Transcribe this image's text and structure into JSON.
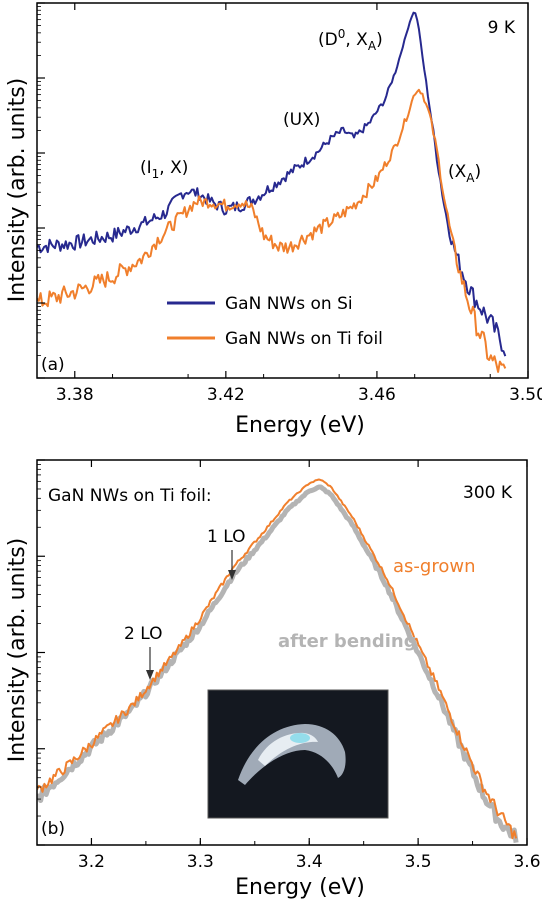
{
  "chart_data": [
    {
      "type": "line",
      "panel_label": "(a)",
      "temperature_label": "9 K",
      "xlabel": "Energy (eV)",
      "ylabel": "Intensity (arb. units)",
      "xlim": [
        3.37,
        3.5
      ],
      "ylim": [
        0,
        1
      ],
      "y_scale": "log",
      "y_tick_labels": "none",
      "x_ticks": [
        3.38,
        3.42,
        3.46,
        3.5
      ],
      "x_tick_labels": [
        "3.38",
        "3.42",
        "3.46",
        "3.50"
      ],
      "legend": {
        "placement": "bottom-center",
        "entries": [
          "GaN NWs on Si",
          "GaN NWs on Ti foil"
        ]
      },
      "annotations": [
        {
          "text": "(I",
          "sub": "1",
          "after": ", X)",
          "x": 3.41
        },
        {
          "text": "(UX)",
          "x": 3.451
        },
        {
          "text": "(D",
          "sup": "0",
          "after": ", X",
          "sub2": "A",
          "end": ")",
          "x": 3.47
        },
        {
          "text": "(X",
          "sub": "A",
          "after": ")",
          "x": 3.481
        }
      ],
      "series": [
        {
          "name": "GaN NWs on Si",
          "color": "#27298f",
          "x": [
            3.37,
            3.38,
            3.39,
            3.398,
            3.404,
            3.408,
            3.41,
            3.413,
            3.416,
            3.42,
            3.424,
            3.428,
            3.432,
            3.436,
            3.44,
            3.444,
            3.448,
            3.451,
            3.454,
            3.458,
            3.462,
            3.465,
            3.467,
            3.469,
            3.47,
            3.471,
            3.472,
            3.474,
            3.476,
            3.478,
            3.48,
            3.482,
            3.484,
            3.486,
            3.49,
            3.494
          ],
          "y": [
            0.35,
            0.36,
            0.38,
            0.41,
            0.44,
            0.49,
            0.5,
            0.49,
            0.47,
            0.45,
            0.46,
            0.48,
            0.51,
            0.54,
            0.57,
            0.6,
            0.64,
            0.66,
            0.64,
            0.68,
            0.74,
            0.82,
            0.89,
            0.96,
            0.98,
            0.94,
            0.86,
            0.72,
            0.58,
            0.45,
            0.36,
            0.3,
            0.25,
            0.21,
            0.15,
            0.08
          ]
        },
        {
          "name": "GaN NWs on Ti foil",
          "color": "#f07f2c",
          "x": [
            3.37,
            3.38,
            3.39,
            3.398,
            3.402,
            3.404,
            3.407,
            3.412,
            3.416,
            3.42,
            3.424,
            3.427,
            3.43,
            3.434,
            3.437,
            3.44,
            3.445,
            3.45,
            3.455,
            3.46,
            3.465,
            3.468,
            3.47,
            3.471,
            3.472,
            3.474,
            3.476,
            3.478,
            3.48,
            3.482,
            3.484,
            3.486,
            3.488,
            3.49,
            3.494
          ],
          "y": [
            0.2,
            0.23,
            0.27,
            0.32,
            0.37,
            0.39,
            0.42,
            0.47,
            0.47,
            0.46,
            0.47,
            0.45,
            0.38,
            0.35,
            0.35,
            0.37,
            0.4,
            0.43,
            0.47,
            0.53,
            0.62,
            0.7,
            0.76,
            0.77,
            0.76,
            0.7,
            0.6,
            0.47,
            0.36,
            0.28,
            0.21,
            0.15,
            0.1,
            0.05,
            0.01
          ]
        }
      ]
    },
    {
      "type": "line",
      "panel_label": "(b)",
      "temperature_label": "300 K",
      "title": "GaN NWs on Ti foil:",
      "xlabel": "Energy (eV)",
      "ylabel": "Intensity (arb. units)",
      "xlim": [
        3.15,
        3.6
      ],
      "ylim": [
        0,
        1
      ],
      "y_scale": "log",
      "y_tick_labels": "none",
      "x_ticks": [
        3.2,
        3.3,
        3.4,
        3.5,
        3.6
      ],
      "x_tick_labels": [
        "3.2",
        "3.3",
        "3.4",
        "3.5",
        "3.6"
      ],
      "annotations": [
        {
          "text": "1 LO",
          "x": 3.33
        },
        {
          "text": "2 LO",
          "x": 3.257
        }
      ],
      "series": [
        {
          "name": "as-grown",
          "color": "#f07f2c",
          "x": [
            3.15,
            3.18,
            3.21,
            3.24,
            3.257,
            3.28,
            3.3,
            3.33,
            3.36,
            3.38,
            3.4,
            3.41,
            3.42,
            3.44,
            3.47,
            3.5,
            3.52,
            3.54,
            3.56,
            3.575,
            3.59
          ],
          "y": [
            0.14,
            0.21,
            0.29,
            0.37,
            0.43,
            0.51,
            0.59,
            0.72,
            0.82,
            0.89,
            0.94,
            0.95,
            0.93,
            0.85,
            0.7,
            0.52,
            0.4,
            0.27,
            0.15,
            0.08,
            0.02
          ]
        },
        {
          "name": "after bending",
          "color": "#b4b4b4",
          "x": [
            3.15,
            3.18,
            3.21,
            3.24,
            3.257,
            3.28,
            3.3,
            3.33,
            3.36,
            3.38,
            3.4,
            3.41,
            3.42,
            3.44,
            3.47,
            3.5,
            3.52,
            3.54,
            3.56,
            3.575,
            3.59
          ],
          "y": [
            0.12,
            0.2,
            0.28,
            0.36,
            0.42,
            0.5,
            0.57,
            0.7,
            0.8,
            0.87,
            0.92,
            0.93,
            0.91,
            0.83,
            0.68,
            0.5,
            0.38,
            0.25,
            0.13,
            0.06,
            0.02
          ]
        }
      ]
    }
  ]
}
